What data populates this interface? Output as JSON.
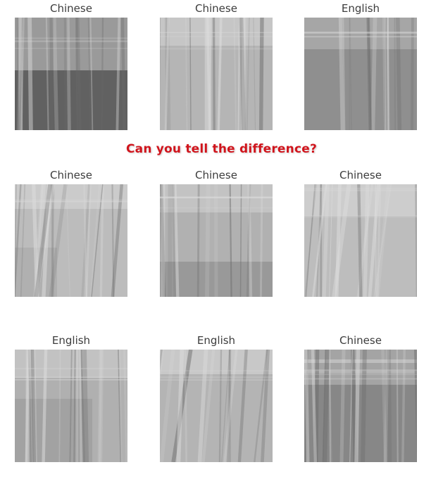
{
  "banner": {
    "text": "Can you tell the difference?",
    "color": "#d0141c"
  },
  "grid": {
    "tiles": [
      {
        "label": "Chinese"
      },
      {
        "label": "Chinese"
      },
      {
        "label": "English"
      },
      {
        "label": "Chinese"
      },
      {
        "label": "Chinese"
      },
      {
        "label": "Chinese"
      },
      {
        "label": "English"
      },
      {
        "label": "English"
      },
      {
        "label": "Chinese"
      }
    ]
  }
}
